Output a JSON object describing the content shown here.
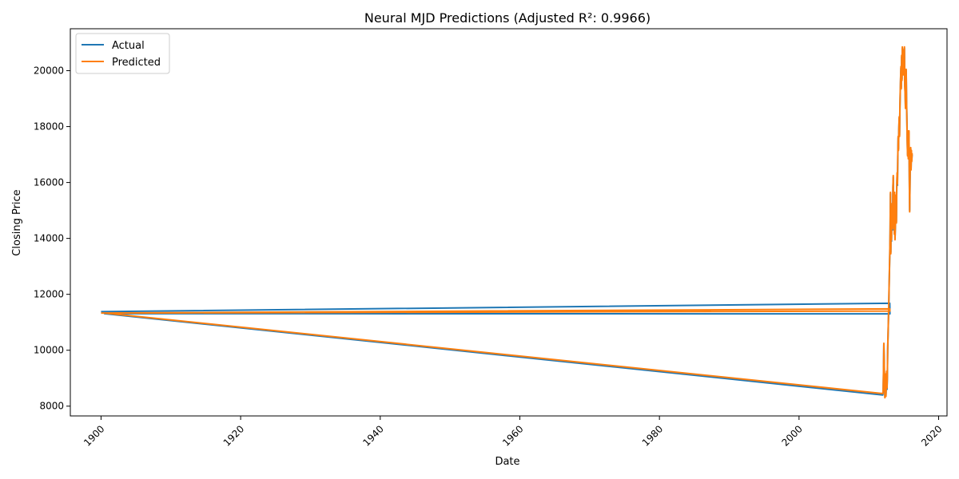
{
  "chart_data": {
    "type": "line",
    "title": "Neural MJD Predictions (Adjusted R²: 0.9966)",
    "xlabel": "Date",
    "ylabel": "Closing Price",
    "xlim": [
      1895.6,
      2021.2
    ],
    "ylim": [
      7650,
      21500
    ],
    "x_ticks": [
      1900,
      1920,
      1940,
      1960,
      1980,
      2000,
      2020
    ],
    "x_tick_labels": [
      "1900",
      "1920",
      "1940",
      "1960",
      "1980",
      "2000",
      "2020"
    ],
    "y_ticks": [
      8000,
      10000,
      12000,
      14000,
      16000,
      18000,
      20000
    ],
    "y_tick_labels": [
      "8000",
      "10000",
      "12000",
      "14000",
      "16000",
      "18000",
      "20000"
    ],
    "x_tick_rotation": 45,
    "grid": false,
    "legend": {
      "position": "top-left"
    },
    "series": [
      {
        "name": "Actual",
        "color": "#1f77b4",
        "x": [
          1900.0,
          2013.0,
          2013.02,
          1900.5,
          2012.0,
          2012.05,
          2012.1,
          2012.15,
          2012.2,
          2012.25,
          2012.3,
          2012.35,
          2012.4,
          2012.45,
          2012.5,
          2012.55,
          2012.6,
          2012.65,
          2012.7,
          2012.75,
          2012.8,
          2012.85,
          2012.9,
          2012.95,
          2013.0,
          2013.05,
          2013.1,
          2013.15,
          2013.2,
          2013.25,
          2013.3,
          2013.35,
          2013.4,
          2013.45,
          2013.5,
          2013.55,
          2013.6,
          2013.65,
          2013.7,
          2013.75,
          2013.8,
          2013.85,
          2013.9,
          2013.95,
          2014.0,
          2014.05,
          2014.1,
          2014.15,
          2014.2,
          2014.25,
          2014.3,
          2014.35,
          2014.4,
          2014.45,
          2014.5,
          2014.55,
          2014.6,
          2014.65,
          2014.7,
          2014.75,
          2014.8,
          2014.85,
          2014.9,
          2014.95,
          2015.0,
          2015.05,
          2015.1,
          2015.15,
          2015.2,
          2015.25,
          2015.3,
          2015.35,
          2015.4,
          2015.45,
          2015.5,
          2015.55,
          2015.6,
          2015.65,
          2015.7,
          2015.75,
          2015.8,
          2015.85,
          2015.9,
          2015.95,
          2016.0,
          2016.05,
          2016.1,
          2016.15,
          2016.2
        ],
        "y": [
          11380,
          11680,
          11300,
          11310,
          8400,
          8500,
          9200,
          10200,
          9600,
          8800,
          8350,
          8600,
          9100,
          8400,
          8700,
          9200,
          8600,
          9000,
          10000,
          10500,
          11000,
          11500,
          12200,
          12800,
          13400,
          14200,
          15600,
          13500,
          14800,
          13900,
          14600,
          15200,
          14300,
          15800,
          16200,
          14800,
          15400,
          14200,
          15600,
          14000,
          14400,
          14900,
          15500,
          14600,
          15800,
          16300,
          15900,
          16900,
          17600,
          17200,
          17900,
          18300,
          17700,
          18600,
          19200,
          19700,
          20100,
          19400,
          20500,
          19700,
          20800,
          20200,
          20400,
          19900,
          20700,
          20100,
          20800,
          19500,
          19200,
          18700,
          19600,
          20000,
          19000,
          18300,
          17500,
          17000,
          17800,
          16900,
          17200,
          17800,
          16200,
          15000,
          16000,
          16800,
          17200,
          16500,
          17100,
          16800,
          17000
        ]
      },
      {
        "name": "Predicted",
        "color": "#ff7f0e",
        "x": [
          1900.0,
          2013.0,
          2013.02,
          1900.5,
          2012.0,
          2012.05,
          2012.1,
          2012.15,
          2012.2,
          2012.25,
          2012.3,
          2012.35,
          2012.4,
          2012.45,
          2012.5,
          2012.55,
          2012.6,
          2012.65,
          2012.7,
          2012.75,
          2012.8,
          2012.85,
          2012.9,
          2012.95,
          2013.0,
          2013.05,
          2013.1,
          2013.15,
          2013.2,
          2013.25,
          2013.3,
          2013.35,
          2013.4,
          2013.45,
          2013.5,
          2013.55,
          2013.6,
          2013.65,
          2013.7,
          2013.75,
          2013.8,
          2013.85,
          2013.9,
          2013.95,
          2014.0,
          2014.05,
          2014.1,
          2014.15,
          2014.2,
          2014.25,
          2014.3,
          2014.35,
          2014.4,
          2014.45,
          2014.5,
          2014.55,
          2014.6,
          2014.65,
          2014.7,
          2014.75,
          2014.8,
          2014.85,
          2014.9,
          2014.95,
          2015.0,
          2015.05,
          2015.1,
          2015.15,
          2015.2,
          2015.25,
          2015.3,
          2015.35,
          2015.4,
          2015.45,
          2015.5,
          2015.55,
          2015.6,
          2015.65,
          2015.7,
          2015.75,
          2015.8,
          2015.85,
          2015.9,
          2015.95,
          2016.0,
          2016.05,
          2016.1,
          2016.15,
          2016.2
        ],
        "y": [
          11330,
          11480,
          11400,
          11330,
          8450,
          8550,
          9250,
          10250,
          9650,
          8850,
          8300,
          8650,
          9150,
          8350,
          8750,
          9250,
          8650,
          9050,
          10050,
          10550,
          11050,
          11550,
          12250,
          12850,
          13450,
          14250,
          15650,
          13450,
          14850,
          13950,
          14650,
          15250,
          14350,
          15850,
          16250,
          14750,
          15450,
          14150,
          15650,
          13950,
          14450,
          14950,
          15550,
          14550,
          15850,
          16350,
          15950,
          16950,
          17650,
          17150,
          17950,
          18350,
          17650,
          18650,
          19250,
          19750,
          20150,
          19350,
          20550,
          19650,
          20850,
          20150,
          20450,
          19850,
          20750,
          20050,
          20850,
          19450,
          19150,
          18650,
          19650,
          20050,
          18950,
          18250,
          17450,
          16950,
          17850,
          16850,
          17250,
          17850,
          16150,
          14950,
          16050,
          16850,
          17250,
          16450,
          17150,
          16750,
          17050
        ]
      }
    ]
  }
}
